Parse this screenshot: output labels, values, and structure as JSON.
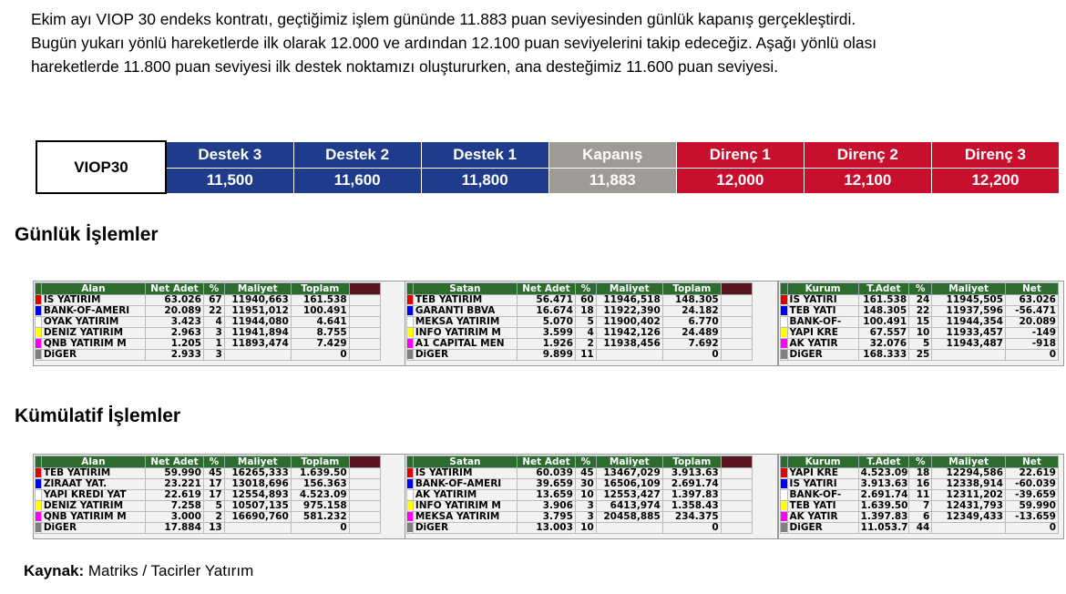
{
  "intro": {
    "lines": [
      "Ekim ayı VIOP 30 endeks kontratı, geçtiğimiz işlem gününde 11.883 puan seviyesinden günlük kapanış gerçekleştirdi.",
      "Bugün yukarı yönlü hareketlerde ilk olarak 12.000 ve ardından 12.100 puan seviyelerini takip edeceğiz. Aşağı yönlü olası",
      "hareketlerde 11.800 puan seviyesi ilk destek noktamızı oluştururken, ana desteğimiz 11.600 puan seviyesi."
    ]
  },
  "levels": {
    "name": "VIOP30",
    "headers": [
      "Destek 3",
      "Destek 2",
      "Destek 1",
      "Kapanış",
      "Direnç 1",
      "Direnç 2",
      "Direnç 3"
    ],
    "values": [
      "11,500",
      "11,600",
      "11,800",
      "11,883",
      "12,000",
      "12,100",
      "12,200"
    ],
    "colors": [
      "#1f3c8c",
      "#1f3c8c",
      "#1f3c8c",
      "#9e9a95",
      "#c8102e",
      "#c8102e",
      "#c8102e"
    ]
  },
  "daily_title": "Günlük İşlemler",
  "cumulative_title": "Kümülatif İşlemler",
  "swatches": [
    "#e00000",
    "#0000ff",
    "#ffffff",
    "#ffff00",
    "#ff00ff",
    "#808080"
  ],
  "daily": {
    "buy": {
      "headers": [
        "Alan",
        "Net Adet",
        "%",
        "Maliyet",
        "Toplam"
      ],
      "rows": [
        [
          "IS YATIRIM",
          "63.026",
          "67",
          "11940,663",
          "161.538"
        ],
        [
          "BANK-OF-AMERI",
          "20.089",
          "22",
          "11951,012",
          "100.491"
        ],
        [
          "OYAK YATIRIM",
          "3.423",
          "4",
          "11944,080",
          "4.641"
        ],
        [
          "DENIZ YATIRIM",
          "2.963",
          "3",
          "11941,894",
          "8.755"
        ],
        [
          "QNB YATIRIM M",
          "1.205",
          "1",
          "11893,474",
          "7.429"
        ],
        [
          "DiGER",
          "2.933",
          "3",
          "",
          "0"
        ]
      ]
    },
    "sell": {
      "headers": [
        "Satan",
        "Net Adet",
        "%",
        "Maliyet",
        "Toplam"
      ],
      "rows": [
        [
          "TEB YATIRIM",
          "56.471",
          "60",
          "11946,518",
          "148.305"
        ],
        [
          "GARANTI BBVA",
          "16.674",
          "18",
          "11922,390",
          "24.182"
        ],
        [
          "MEKSA YATIRIM",
          "5.070",
          "5",
          "11900,402",
          "6.770"
        ],
        [
          "INFO YATIRIM M",
          "3.599",
          "4",
          "11942,126",
          "24.489"
        ],
        [
          "A1 CAPITAL MEN",
          "1.926",
          "2",
          "11938,456",
          "7.692"
        ],
        [
          "DiGER",
          "9.899",
          "11",
          "",
          "0"
        ]
      ]
    },
    "net": {
      "headers": [
        "Kurum",
        "T.Adet",
        "%",
        "Maliyet",
        "Net"
      ],
      "rows": [
        [
          "IS YATIRI",
          "161.538",
          "24",
          "11945,505",
          "63.026"
        ],
        [
          "TEB YATI",
          "148.305",
          "22",
          "11937,596",
          "-56.471"
        ],
        [
          "BANK-OF-",
          "100.491",
          "15",
          "11944,354",
          "20.089"
        ],
        [
          "YAPI KRE",
          "67.557",
          "10",
          "11933,457",
          "-149"
        ],
        [
          "AK YATIR",
          "32.076",
          "5",
          "11943,487",
          "-918"
        ],
        [
          "DiGER",
          "168.333",
          "25",
          "",
          "0"
        ]
      ]
    }
  },
  "cumulative": {
    "buy": {
      "headers": [
        "Alan",
        "Net Adet",
        "%",
        "Maliyet",
        "Toplam"
      ],
      "rows": [
        [
          "TEB YATIRIM",
          "59.990",
          "45",
          "16265,333",
          "1.639.50"
        ],
        [
          "ZIRAAT YAT.",
          "23.221",
          "17",
          "13018,696",
          "156.363"
        ],
        [
          "YAPI KREDI YAT",
          "22.619",
          "17",
          "12554,893",
          "4.523.09"
        ],
        [
          "DENIZ YATIRIM",
          "7.258",
          "5",
          "10507,135",
          "975.158"
        ],
        [
          "QNB YATIRIM M",
          "3.000",
          "2",
          "16690,760",
          "581.232"
        ],
        [
          "DiGER",
          "17.884",
          "13",
          "",
          "0"
        ]
      ]
    },
    "sell": {
      "headers": [
        "Satan",
        "Net Adet",
        "%",
        "Maliyet",
        "Toplam"
      ],
      "rows": [
        [
          "IS YATIRIM",
          "60.039",
          "45",
          "13467,029",
          "3.913.63"
        ],
        [
          "BANK-OF-AMERI",
          "39.659",
          "30",
          "16506,109",
          "2.691.74"
        ],
        [
          "AK YATIRIM",
          "13.659",
          "10",
          "12553,427",
          "1.397.83"
        ],
        [
          "INFO YATIRIM M",
          "3.906",
          "3",
          "6413,974",
          "1.358.43"
        ],
        [
          "MEKSA YATIRIM",
          "3.795",
          "3",
          "20458,885",
          "234.375"
        ],
        [
          "DiGER",
          "13.003",
          "10",
          "",
          "0"
        ]
      ]
    },
    "net": {
      "headers": [
        "Kurum",
        "T.Adet",
        "%",
        "Maliyet",
        "Net"
      ],
      "rows": [
        [
          "YAPI KRE",
          "4.523.09",
          "18",
          "12294,586",
          "22.619"
        ],
        [
          "IS YATIRI",
          "3.913.63",
          "16",
          "12338,914",
          "-60.039"
        ],
        [
          "BANK-OF-",
          "2.691.74",
          "11",
          "12311,202",
          "-39.659"
        ],
        [
          "TEB YATI",
          "1.639.50",
          "7",
          "12431,793",
          "59.990"
        ],
        [
          "AK YATIR",
          "1.397.83",
          "6",
          "12349,433",
          "-13.659"
        ],
        [
          "DiGER",
          "11.053.7",
          "44",
          "",
          "0"
        ]
      ]
    }
  },
  "source": {
    "label": "Kaynak:",
    "text": " Matriks / Tacirler Yatırım"
  }
}
